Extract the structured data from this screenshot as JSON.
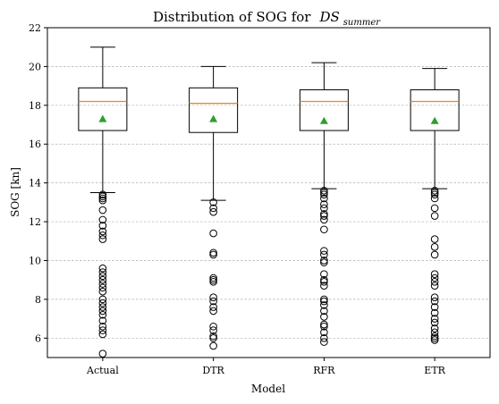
{
  "chart_data": {
    "type": "box",
    "title": "Distribution of SOG for",
    "title_math_base": "DS",
    "title_math_subscript": "summer",
    "xlabel": "Model",
    "ylabel": "SOG [kn]",
    "ylim": [
      5,
      22
    ],
    "yticks": [
      6,
      8,
      10,
      12,
      14,
      16,
      18,
      20,
      22
    ],
    "grid": "y-dashed",
    "colors": {
      "box": "#000000",
      "median": "#ff7f0e",
      "mean_marker": "#2ca02c",
      "outlier": "#000000",
      "grid": "#b0b0b0"
    },
    "categories": [
      "Actual",
      "DTR",
      "RFR",
      "ETR"
    ],
    "boxes": [
      {
        "label": "Actual",
        "whisker_low": 13.5,
        "q1": 16.7,
        "median": 18.2,
        "q3": 18.9,
        "whisker_high": 21.0,
        "mean": 17.3,
        "outliers": [
          13.4,
          13.3,
          13.2,
          13.1,
          12.6,
          12.1,
          11.8,
          11.5,
          11.3,
          11.1,
          9.6,
          9.4,
          9.2,
          9.0,
          8.8,
          8.6,
          8.4,
          8.0,
          7.8,
          7.6,
          7.4,
          7.2,
          6.9,
          6.6,
          6.4,
          6.2,
          5.2
        ]
      },
      {
        "label": "DTR",
        "whisker_low": 13.1,
        "q1": 16.6,
        "median": 18.1,
        "q3": 18.9,
        "whisker_high": 20.0,
        "mean": 17.3,
        "outliers": [
          13.0,
          12.7,
          12.5,
          11.4,
          10.4,
          10.3,
          9.1,
          9.0,
          8.9,
          8.1,
          7.9,
          7.6,
          7.4,
          6.6,
          6.4,
          6.1,
          6.0,
          5.6
        ]
      },
      {
        "label": "RFR",
        "whisker_low": 13.7,
        "q1": 16.7,
        "median": 18.2,
        "q3": 18.8,
        "whisker_high": 20.2,
        "mean": 17.2,
        "outliers": [
          13.6,
          13.5,
          13.4,
          13.2,
          12.9,
          12.7,
          12.4,
          12.3,
          12.1,
          11.6,
          10.5,
          10.3,
          10.0,
          9.9,
          9.3,
          9.0,
          8.9,
          8.7,
          8.0,
          7.9,
          7.7,
          7.4,
          7.1,
          6.7,
          6.6,
          6.3,
          6.0,
          5.8
        ]
      },
      {
        "label": "ETR",
        "whisker_low": 13.7,
        "q1": 16.7,
        "median": 18.2,
        "q3": 18.8,
        "whisker_high": 19.9,
        "mean": 17.2,
        "outliers": [
          13.6,
          13.5,
          13.4,
          13.2,
          12.7,
          12.3,
          11.1,
          10.7,
          10.3,
          9.3,
          9.1,
          8.9,
          8.7,
          8.1,
          7.9,
          7.6,
          7.3,
          7.0,
          6.8,
          6.5,
          6.3,
          6.1,
          6.0,
          5.9
        ]
      }
    ]
  }
}
